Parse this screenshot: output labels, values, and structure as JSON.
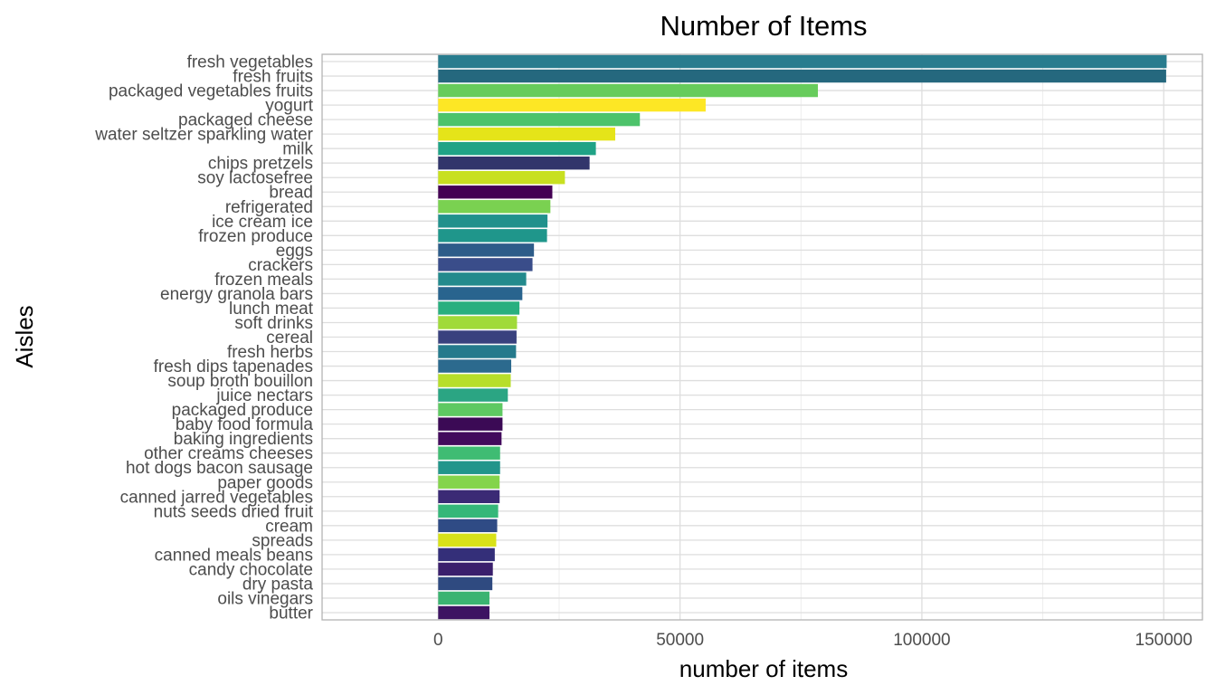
{
  "chart_data": {
    "type": "bar",
    "orientation": "horizontal",
    "title": "Number of Items",
    "xlabel": "number of items",
    "ylabel": "Aisles",
    "xlim": [
      -24000,
      158000
    ],
    "x_ticks": [
      0,
      50000,
      100000,
      150000
    ],
    "x_tick_labels": [
      "0",
      "50000",
      "100000",
      "150000"
    ],
    "grid": true,
    "legend": "none",
    "bars": [
      {
        "label": "fresh vegetables",
        "value": 150600,
        "color": "#287C8E"
      },
      {
        "label": "fresh fruits",
        "value": 150500,
        "color": "#25687E"
      },
      {
        "label": "packaged vegetables fruits",
        "value": 78500,
        "color": "#67CC5C"
      },
      {
        "label": "yogurt",
        "value": 55300,
        "color": "#FDE725"
      },
      {
        "label": "packaged cheese",
        "value": 41700,
        "color": "#4DC36B"
      },
      {
        "label": "water seltzer sparkling water",
        "value": 36600,
        "color": "#E5E419"
      },
      {
        "label": "milk",
        "value": 32600,
        "color": "#20A386"
      },
      {
        "label": "chips pretzels",
        "value": 31300,
        "color": "#32356B"
      },
      {
        "label": "soy lactosefree",
        "value": 26200,
        "color": "#C8E020"
      },
      {
        "label": "bread",
        "value": 23600,
        "color": "#440154"
      },
      {
        "label": "refrigerated",
        "value": 23200,
        "color": "#7AD151"
      },
      {
        "label": "ice cream ice",
        "value": 22600,
        "color": "#21918C"
      },
      {
        "label": "frozen produce",
        "value": 22500,
        "color": "#1F968B"
      },
      {
        "label": "eggs",
        "value": 19800,
        "color": "#2D5C89"
      },
      {
        "label": "crackers",
        "value": 19500,
        "color": "#3A4D8A"
      },
      {
        "label": "frozen meals",
        "value": 18200,
        "color": "#238A8D"
      },
      {
        "label": "energy granola bars",
        "value": 17400,
        "color": "#29648E"
      },
      {
        "label": "lunch meat",
        "value": 16800,
        "color": "#29AF7F"
      },
      {
        "label": "soft drinks",
        "value": 16300,
        "color": "#A0DA39"
      },
      {
        "label": "cereal",
        "value": 16200,
        "color": "#39417E"
      },
      {
        "label": "fresh herbs",
        "value": 16100,
        "color": "#257A8C"
      },
      {
        "label": "fresh dips tapenades",
        "value": 15100,
        "color": "#2C6A8E"
      },
      {
        "label": "soup broth bouillon",
        "value": 15000,
        "color": "#B7DE2A"
      },
      {
        "label": "juice nectars",
        "value": 14400,
        "color": "#2BA583"
      },
      {
        "label": "packaged produce",
        "value": 13300,
        "color": "#5EC962"
      },
      {
        "label": "baby food formula",
        "value": 13300,
        "color": "#3B0A55"
      },
      {
        "label": "baking ingredients",
        "value": 13100,
        "color": "#420A5C"
      },
      {
        "label": "other creams cheeses",
        "value": 12800,
        "color": "#3FBC73"
      },
      {
        "label": "hot dogs bacon sausage",
        "value": 12800,
        "color": "#22958B"
      },
      {
        "label": "paper goods",
        "value": 12700,
        "color": "#84D44B"
      },
      {
        "label": "canned jarred vegetables",
        "value": 12700,
        "color": "#3B2A75"
      },
      {
        "label": "nuts seeds dried fruit",
        "value": 12400,
        "color": "#35B779"
      },
      {
        "label": "cream",
        "value": 12200,
        "color": "#2F4B85"
      },
      {
        "label": "spreads",
        "value": 12000,
        "color": "#D8E219"
      },
      {
        "label": "canned meals beans",
        "value": 11700,
        "color": "#342F79"
      },
      {
        "label": "candy chocolate",
        "value": 11300,
        "color": "#3A1F6C"
      },
      {
        "label": "dry pasta",
        "value": 11200,
        "color": "#2F4A80"
      },
      {
        "label": "oils vinegars",
        "value": 10600,
        "color": "#3BB371"
      },
      {
        "label": "butter",
        "value": 10600,
        "color": "#3D1362"
      }
    ]
  }
}
